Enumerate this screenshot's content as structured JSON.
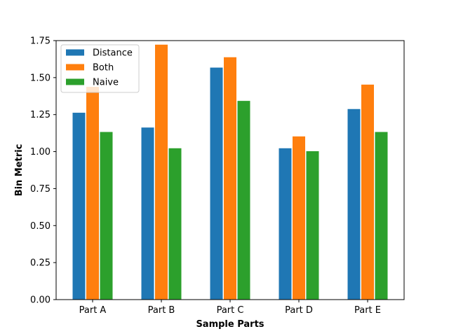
{
  "chart_data": {
    "type": "bar",
    "title": "",
    "xlabel": "Sample Parts",
    "ylabel": "Bin Metric",
    "categories": [
      "Part A",
      "Part B",
      "Part C",
      "Part D",
      "Part E"
    ],
    "series": [
      {
        "name": "Distance",
        "color": "#1f77b4",
        "values": [
          1.265,
          1.165,
          1.57,
          1.025,
          1.29
        ]
      },
      {
        "name": "Both",
        "color": "#ff7f0e",
        "values": [
          1.44,
          1.725,
          1.64,
          1.105,
          1.455
        ]
      },
      {
        "name": "Naive",
        "color": "#2ca02c",
        "values": [
          1.135,
          1.025,
          1.345,
          1.005,
          1.135
        ]
      }
    ],
    "ylim": [
      0,
      1.75
    ],
    "yticks": [
      "0.00",
      "0.25",
      "0.50",
      "0.75",
      "1.00",
      "1.25",
      "1.50",
      "1.75"
    ],
    "legend_position": "top-left",
    "grid": false
  }
}
